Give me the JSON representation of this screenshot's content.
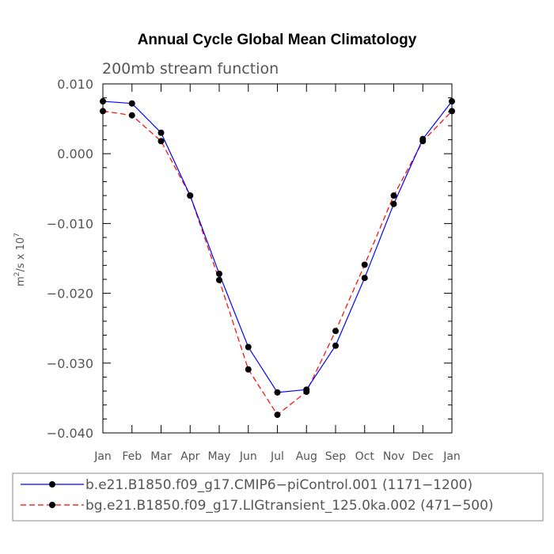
{
  "chart_data": {
    "type": "line",
    "title": "Annual Cycle Global Mean Climatology",
    "subtitle": "200mb stream function",
    "ylabel_base": "m",
    "ylabel_exp": "2",
    "ylabel_mid": "/s x 10",
    "ylabel_exp2": "7",
    "xlabel": "",
    "categories": [
      "Jan",
      "Feb",
      "Mar",
      "Apr",
      "May",
      "Jun",
      "Jul",
      "Aug",
      "Sep",
      "Oct",
      "Nov",
      "Dec",
      "Jan"
    ],
    "ylim": [
      -0.04,
      0.01
    ],
    "yticks": [
      0.01,
      0.0,
      -0.01,
      -0.02,
      -0.03,
      -0.04
    ],
    "ytick_labels": [
      "0.010",
      "0.000",
      "−0.010",
      "−0.020",
      "−0.030",
      "−0.040"
    ],
    "grid": false,
    "legend_position": "bottom",
    "series": [
      {
        "name": "b.e21.B1850.f09_g17.CMIP6−piControl.001 (1171−1200)",
        "color": "#0000ff",
        "line_style": "solid",
        "values": [
          0.0075,
          0.0072,
          0.003,
          -0.006,
          -0.0172,
          -0.0277,
          -0.0342,
          -0.0338,
          -0.0275,
          -0.0178,
          -0.0072,
          0.0021,
          0.0075
        ]
      },
      {
        "name": "bg.e21.B1850.f09_g17.LIGtransient_125.0ka.002 (471−500)",
        "color": "#ff0000",
        "line_style": "dashed",
        "values": [
          0.0061,
          0.0055,
          0.0018,
          -0.006,
          -0.0181,
          -0.0309,
          -0.0374,
          -0.0341,
          -0.0254,
          -0.0159,
          -0.006,
          0.0018,
          0.0061
        ]
      }
    ]
  }
}
